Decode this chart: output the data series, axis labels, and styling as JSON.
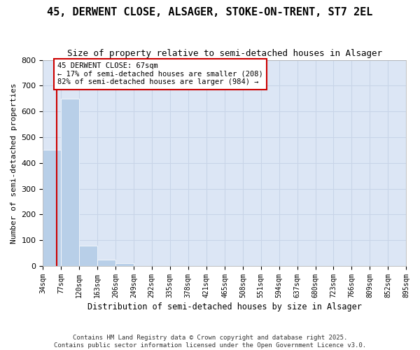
{
  "title": "45, DERWENT CLOSE, ALSAGER, STOKE-ON-TRENT, ST7 2EL",
  "subtitle": "Size of property relative to semi-detached houses in Alsager",
  "xlabel": "Distribution of semi-detached houses by size in Alsager",
  "ylabel": "Number of semi-detached properties",
  "bin_edges": [
    34,
    77,
    120,
    163,
    206,
    249,
    292,
    335,
    378,
    421,
    465,
    508,
    551,
    594,
    637,
    680,
    723,
    766,
    809,
    852,
    895
  ],
  "bin_labels": [
    "34sqm",
    "77sqm",
    "120sqm",
    "163sqm",
    "206sqm",
    "249sqm",
    "292sqm",
    "335sqm",
    "378sqm",
    "421sqm",
    "465sqm",
    "508sqm",
    "551sqm",
    "594sqm",
    "637sqm",
    "680sqm",
    "723sqm",
    "766sqm",
    "809sqm",
    "852sqm",
    "895sqm"
  ],
  "values": [
    450,
    650,
    80,
    25,
    10,
    1,
    0,
    0,
    1,
    0,
    0,
    0,
    0,
    0,
    0,
    0,
    0,
    0,
    0,
    0
  ],
  "bar_color": "#b8cfe8",
  "bar_edge_color": "#b8cfe8",
  "grid_color": "#c8d4e8",
  "background_color": "#dce6f5",
  "ylim": [
    0,
    800
  ],
  "yticks": [
    0,
    100,
    200,
    300,
    400,
    500,
    600,
    700,
    800
  ],
  "property_sqm": 67,
  "property_bin_index": 0,
  "property_line_color": "#cc0000",
  "annotation_text": "45 DERWENT CLOSE: 67sqm\n← 17% of semi-detached houses are smaller (208)\n82% of semi-detached houses are larger (984) →",
  "annotation_box_color": "#cc0000",
  "footer_line1": "Contains HM Land Registry data © Crown copyright and database right 2025.",
  "footer_line2": "Contains public sector information licensed under the Open Government Licence v3.0.",
  "title_fontsize": 11,
  "subtitle_fontsize": 9
}
